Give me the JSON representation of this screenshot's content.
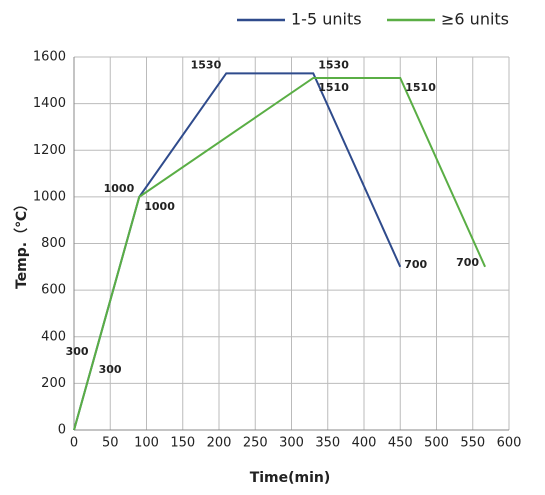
{
  "chart_data": {
    "type": "line",
    "x_label": "Time(min)",
    "y_label": "Temp.（℃）",
    "xlim": [
      0,
      600
    ],
    "xticks": [
      0,
      50,
      100,
      150,
      200,
      250,
      300,
      350,
      400,
      450,
      500,
      550,
      600
    ],
    "ylim": [
      0,
      1600
    ],
    "yticks": [
      0,
      200,
      400,
      600,
      800,
      1000,
      1200,
      1400,
      1600
    ],
    "grid": true,
    "legend": "top-right",
    "series": [
      {
        "name": "1-5 units",
        "color": "#2f4b8c",
        "x": [
          0,
          27,
          90,
          210,
          330,
          450
        ],
        "values": [
          0,
          300,
          1000,
          1530,
          1530,
          700
        ],
        "value_labels": [
          null,
          "300",
          "1000",
          "1530",
          "1530",
          "700"
        ]
      },
      {
        "name": "≥6 units",
        "color": "#5aae45",
        "x": [
          0,
          27,
          90,
          330,
          450,
          567
        ],
        "values": [
          0,
          300,
          1000,
          1510,
          1510,
          700
        ],
        "value_labels": [
          null,
          "300",
          "1000",
          "1510",
          "1510",
          "700"
        ]
      }
    ]
  }
}
